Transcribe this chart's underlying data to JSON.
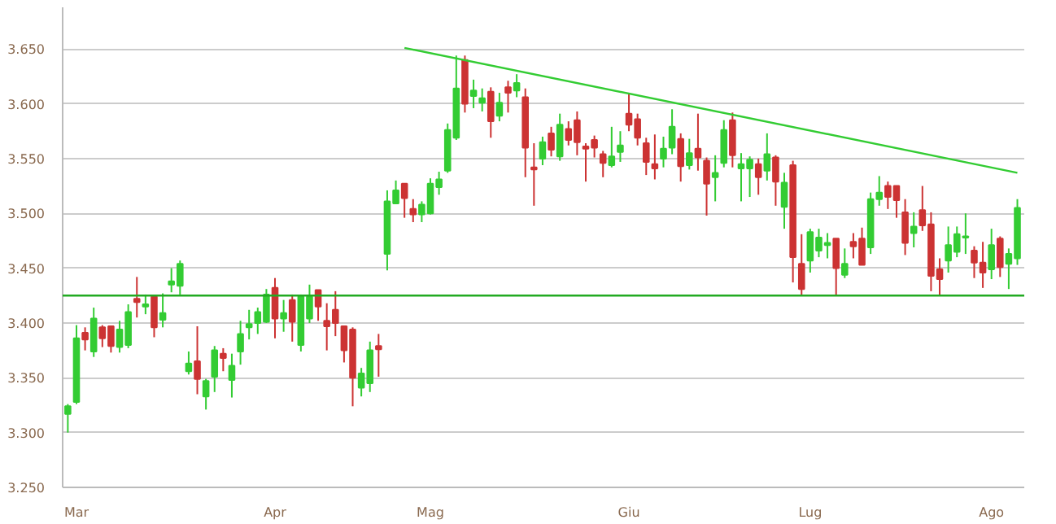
{
  "chart_data": {
    "type": "candlestick",
    "categories": [
      null,
      "Mar",
      null,
      null,
      null,
      null,
      null,
      null,
      null,
      null,
      null,
      null,
      null,
      null,
      null,
      null,
      null,
      null,
      null,
      null,
      null,
      null,
      null,
      null,
      "Apr",
      null,
      null,
      null,
      null,
      null,
      null,
      null,
      null,
      null,
      null,
      null,
      null,
      null,
      null,
      null,
      null,
      null,
      "Mag",
      null,
      null,
      null,
      null,
      null,
      null,
      null,
      null,
      null,
      null,
      null,
      null,
      null,
      null,
      null,
      null,
      null,
      null,
      null,
      null,
      null,
      null,
      "Giu",
      null,
      null,
      null,
      null,
      null,
      null,
      null,
      null,
      null,
      null,
      null,
      null,
      null,
      null,
      null,
      null,
      null,
      null,
      null,
      null,
      "Lug",
      null,
      null,
      null,
      null,
      null,
      null,
      null,
      null,
      null,
      null,
      null,
      null,
      null,
      null,
      null,
      null,
      null,
      null,
      null,
      null,
      "Ago",
      null,
      null,
      null
    ],
    "ohlc": [
      [
        3.317,
        3.326,
        3.3,
        3.324
      ],
      [
        3.328,
        3.398,
        3.326,
        3.386
      ],
      [
        3.391,
        3.396,
        3.375,
        3.385
      ],
      [
        3.374,
        3.414,
        3.369,
        3.404
      ],
      [
        3.396,
        3.398,
        3.378,
        3.386
      ],
      [
        3.397,
        3.397,
        3.373,
        3.379
      ],
      [
        3.378,
        3.402,
        3.373,
        3.394
      ],
      [
        3.38,
        3.417,
        3.377,
        3.41
      ],
      [
        3.422,
        3.442,
        3.405,
        3.419
      ],
      [
        3.415,
        3.426,
        3.408,
        3.417
      ],
      [
        3.424,
        3.424,
        3.387,
        3.396
      ],
      [
        3.403,
        3.427,
        3.396,
        3.409
      ],
      [
        3.435,
        3.45,
        3.428,
        3.438
      ],
      [
        3.434,
        3.457,
        3.426,
        3.454
      ],
      [
        3.356,
        3.374,
        3.353,
        3.363
      ],
      [
        3.365,
        3.397,
        3.335,
        3.349
      ],
      [
        3.333,
        3.349,
        3.321,
        3.347
      ],
      [
        3.351,
        3.379,
        3.337,
        3.375
      ],
      [
        3.372,
        3.377,
        3.356,
        3.368
      ],
      [
        3.348,
        3.372,
        3.332,
        3.361
      ],
      [
        3.374,
        3.402,
        3.362,
        3.39
      ],
      [
        3.396,
        3.412,
        3.385,
        3.399
      ],
      [
        3.4,
        3.414,
        3.39,
        3.41
      ],
      [
        3.401,
        3.431,
        3.4,
        3.426
      ],
      [
        3.432,
        3.441,
        3.386,
        3.404
      ],
      [
        3.404,
        3.421,
        3.392,
        3.409
      ],
      [
        3.421,
        3.426,
        3.383,
        3.401
      ],
      [
        3.38,
        3.426,
        3.374,
        3.424
      ],
      [
        3.404,
        3.435,
        3.4,
        3.424
      ],
      [
        3.43,
        3.43,
        3.402,
        3.415
      ],
      [
        3.402,
        3.418,
        3.375,
        3.397
      ],
      [
        3.412,
        3.429,
        3.388,
        3.4
      ],
      [
        3.397,
        3.397,
        3.364,
        3.375
      ],
      [
        3.394,
        3.396,
        3.324,
        3.35
      ],
      [
        3.341,
        3.359,
        3.333,
        3.354
      ],
      [
        3.345,
        3.383,
        3.337,
        3.375
      ],
      [
        3.379,
        3.39,
        3.351,
        3.376
      ],
      [
        3.463,
        3.521,
        3.448,
        3.511
      ],
      [
        3.509,
        3.53,
        3.509,
        3.521
      ],
      [
        3.527,
        3.527,
        3.496,
        3.514
      ],
      [
        3.504,
        3.513,
        3.492,
        3.499
      ],
      [
        3.499,
        3.511,
        3.492,
        3.508
      ],
      [
        3.5,
        3.532,
        3.499,
        3.527
      ],
      [
        3.524,
        3.538,
        3.517,
        3.531
      ],
      [
        3.539,
        3.582,
        3.537,
        3.576
      ],
      [
        3.569,
        3.644,
        3.567,
        3.614
      ],
      [
        3.64,
        3.644,
        3.592,
        3.6
      ],
      [
        3.607,
        3.622,
        3.596,
        3.612
      ],
      [
        3.601,
        3.614,
        3.593,
        3.605
      ],
      [
        3.611,
        3.615,
        3.569,
        3.584
      ],
      [
        3.589,
        3.61,
        3.584,
        3.601
      ],
      [
        3.615,
        3.621,
        3.592,
        3.61
      ],
      [
        3.612,
        3.627,
        3.606,
        3.619
      ],
      [
        3.606,
        3.614,
        3.533,
        3.56
      ],
      [
        3.542,
        3.564,
        3.507,
        3.54
      ],
      [
        3.55,
        3.57,
        3.544,
        3.565
      ],
      [
        3.573,
        3.579,
        3.552,
        3.558
      ],
      [
        3.552,
        3.591,
        3.548,
        3.581
      ],
      [
        3.577,
        3.584,
        3.562,
        3.567
      ],
      [
        3.585,
        3.593,
        3.553,
        3.565
      ],
      [
        3.561,
        3.564,
        3.529,
        3.559
      ],
      [
        3.567,
        3.571,
        3.551,
        3.56
      ],
      [
        3.554,
        3.557,
        3.533,
        3.546
      ],
      [
        3.544,
        3.579,
        3.542,
        3.552
      ],
      [
        3.556,
        3.575,
        3.547,
        3.562
      ],
      [
        3.591,
        3.609,
        3.575,
        3.581
      ],
      [
        3.586,
        3.591,
        3.562,
        3.569
      ],
      [
        3.564,
        3.569,
        3.535,
        3.547
      ],
      [
        3.545,
        3.572,
        3.531,
        3.541
      ],
      [
        3.55,
        3.57,
        3.542,
        3.559
      ],
      [
        3.56,
        3.595,
        3.554,
        3.579
      ],
      [
        3.568,
        3.573,
        3.529,
        3.543
      ],
      [
        3.544,
        3.568,
        3.54,
        3.555
      ],
      [
        3.559,
        3.591,
        3.539,
        3.551
      ],
      [
        3.548,
        3.551,
        3.498,
        3.527
      ],
      [
        3.533,
        3.553,
        3.511,
        3.537
      ],
      [
        3.546,
        3.585,
        3.542,
        3.576
      ],
      [
        3.585,
        3.592,
        3.542,
        3.553
      ],
      [
        3.541,
        3.555,
        3.511,
        3.545
      ],
      [
        3.541,
        3.552,
        3.515,
        3.549
      ],
      [
        3.545,
        3.55,
        3.517,
        3.533
      ],
      [
        3.539,
        3.573,
        3.53,
        3.554
      ],
      [
        3.551,
        3.553,
        3.507,
        3.529
      ],
      [
        3.506,
        3.537,
        3.486,
        3.528
      ],
      [
        3.544,
        3.548,
        3.437,
        3.46
      ],
      [
        3.454,
        3.481,
        3.425,
        3.431
      ],
      [
        3.457,
        3.486,
        3.446,
        3.483
      ],
      [
        3.466,
        3.486,
        3.46,
        3.478
      ],
      [
        3.471,
        3.482,
        3.459,
        3.473
      ],
      [
        3.477,
        3.477,
        3.425,
        3.45
      ],
      [
        3.444,
        3.468,
        3.441,
        3.454
      ],
      [
        3.474,
        3.482,
        3.459,
        3.47
      ],
      [
        3.477,
        3.487,
        3.453,
        3.453
      ],
      [
        3.469,
        3.519,
        3.463,
        3.513
      ],
      [
        3.513,
        3.534,
        3.507,
        3.519
      ],
      [
        3.525,
        3.529,
        3.504,
        3.515
      ],
      [
        3.525,
        3.525,
        3.496,
        3.512
      ],
      [
        3.501,
        3.513,
        3.462,
        3.473
      ],
      [
        3.482,
        3.501,
        3.469,
        3.488
      ],
      [
        3.503,
        3.525,
        3.484,
        3.489
      ],
      [
        3.49,
        3.501,
        3.429,
        3.443
      ],
      [
        3.449,
        3.459,
        3.425,
        3.44
      ],
      [
        3.457,
        3.488,
        3.446,
        3.471
      ],
      [
        3.465,
        3.488,
        3.46,
        3.481
      ],
      [
        3.478,
        3.5,
        3.463,
        3.479
      ],
      [
        3.466,
        3.47,
        3.441,
        3.455
      ],
      [
        3.455,
        3.474,
        3.432,
        3.446
      ],
      [
        3.449,
        3.486,
        3.44,
        3.471
      ],
      [
        3.477,
        3.479,
        3.442,
        3.451
      ],
      [
        3.454,
        3.468,
        3.431,
        3.463
      ],
      [
        3.459,
        3.513,
        3.453,
        3.505
      ]
    ],
    "colors": [
      "#33cc33",
      "#33cc33",
      "#cc3333",
      "#33cc33",
      "#cc3333",
      "#cc3333",
      "#33cc33",
      "#33cc33",
      "#cc3333",
      "#33cc33",
      "#cc3333",
      "#33cc33",
      "#33cc33",
      "#33cc33",
      "#33cc33",
      "#cc3333",
      "#33cc33",
      "#33cc33",
      "#cc3333",
      "#33cc33",
      "#33cc33",
      "#33cc33",
      "#33cc33",
      "#33cc33",
      "#cc3333",
      "#33cc33",
      "#cc3333",
      "#33cc33",
      "#33cc33",
      "#cc3333",
      "#cc3333",
      "#cc3333",
      "#cc3333",
      "#cc3333",
      "#33cc33",
      "#33cc33",
      "#cc3333",
      "#33cc33",
      "#33cc33",
      "#cc3333",
      "#cc3333",
      "#33cc33",
      "#33cc33",
      "#33cc33",
      "#33cc33",
      "#33cc33",
      "#cc3333",
      "#33cc33",
      "#33cc33",
      "#cc3333",
      "#33cc33",
      "#cc3333",
      "#33cc33",
      "#cc3333",
      "#cc3333",
      "#33cc33",
      "#cc3333",
      "#33cc33",
      "#cc3333",
      "#cc3333",
      "#cc3333",
      "#cc3333",
      "#cc3333",
      "#33cc33",
      "#33cc33",
      "#cc3333",
      "#cc3333",
      "#cc3333",
      "#cc3333",
      "#33cc33",
      "#33cc33",
      "#cc3333",
      "#33cc33",
      "#cc3333",
      "#cc3333",
      "#33cc33",
      "#33cc33",
      "#cc3333",
      "#33cc33",
      "#33cc33",
      "#cc3333",
      "#33cc33",
      "#cc3333",
      "#33cc33",
      "#cc3333",
      "#cc3333",
      "#33cc33",
      "#33cc33",
      "#33cc33",
      "#cc3333",
      "#33cc33",
      "#cc3333",
      "#cc3333",
      "#33cc33",
      "#33cc33",
      "#cc3333",
      "#cc3333",
      "#cc3333",
      "#33cc33",
      "#cc3333",
      "#cc3333",
      "#cc3333",
      "#33cc33",
      "#33cc33",
      "#33cc33",
      "#cc3333",
      "#cc3333",
      "#33cc33",
      "#cc3333",
      "#33cc33",
      "#33cc33"
    ],
    "series": [
      {
        "type": "line",
        "color": "#33cc33",
        "values": [
          null,
          null,
          null,
          null,
          null,
          null,
          null,
          null,
          null,
          null,
          null,
          null,
          null,
          null,
          null,
          null,
          null,
          null,
          null,
          null,
          null,
          null,
          null,
          null,
          null,
          null,
          null,
          null,
          null,
          null,
          null,
          null,
          null,
          null,
          null,
          null,
          null,
          null,
          null,
          3.651,
          null,
          null,
          null,
          null,
          null,
          null,
          null,
          null,
          null,
          null,
          null,
          null,
          null,
          null,
          null,
          null,
          null,
          null,
          null,
          null,
          null,
          null,
          null,
          null,
          null,
          null,
          null,
          null,
          null,
          null,
          null,
          null,
          null,
          null,
          null,
          null,
          null,
          null,
          null,
          null,
          null,
          null,
          null,
          null,
          null,
          null,
          null,
          null,
          null,
          null,
          null,
          null,
          null,
          null,
          null,
          null,
          null,
          null,
          null,
          null,
          null,
          null,
          null,
          null,
          null,
          null,
          null,
          null,
          null,
          null,
          3.537
        ]
      }
    ],
    "ref_lines": [
      {
        "axis": "y",
        "value": 3.425,
        "color": "#22aa22"
      }
    ],
    "ylim": [
      3.25,
      3.688
    ],
    "yticks": [
      {
        "value": 3.25,
        "label": "3.250"
      },
      {
        "value": 3.3,
        "label": "3.300"
      },
      {
        "value": 3.35,
        "label": "3.350"
      },
      {
        "value": 3.4,
        "label": "3.400"
      },
      {
        "value": 3.45,
        "label": "3.450"
      },
      {
        "value": 3.5,
        "label": "3.500"
      },
      {
        "value": 3.55,
        "label": "3.550"
      },
      {
        "value": 3.6,
        "label": "3.600"
      },
      {
        "value": 3.65,
        "label": "3.650"
      }
    ],
    "grid": "y"
  }
}
